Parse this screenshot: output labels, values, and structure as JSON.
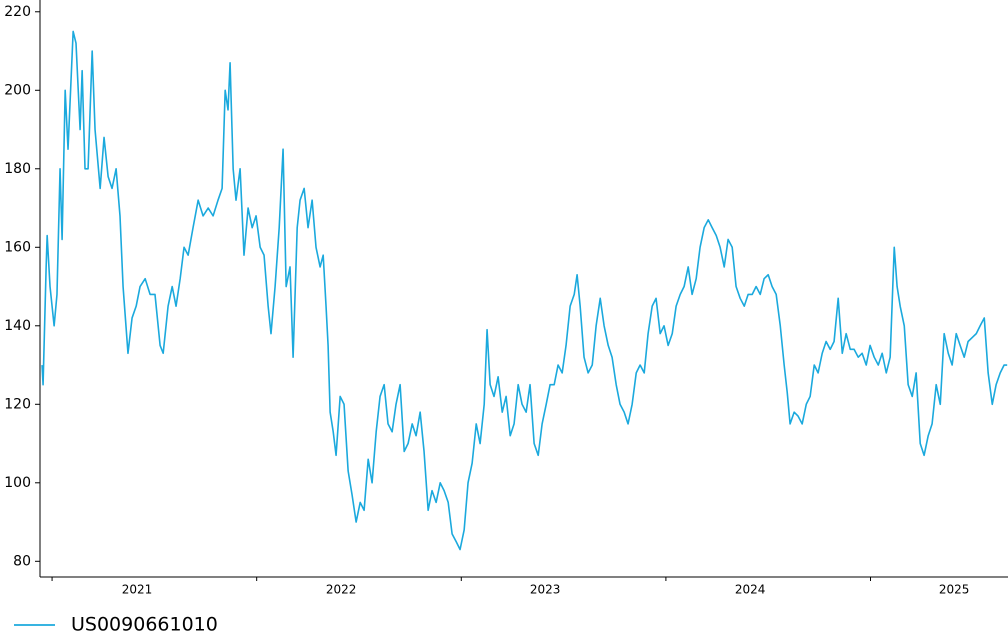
{
  "chart_data": {
    "type": "line",
    "x": [
      2020.951,
      2020.956,
      2020.971,
      2020.976,
      2020.99,
      2021.01,
      2021.024,
      2021.039,
      2021.049,
      2021.064,
      2021.078,
      2021.103,
      2021.117,
      2021.137,
      2021.147,
      2021.161,
      2021.176,
      2021.196,
      2021.21,
      2021.235,
      2021.254,
      2021.274,
      2021.293,
      2021.313,
      2021.332,
      2021.347,
      2021.371,
      2021.391,
      2021.411,
      2021.43,
      2021.455,
      2021.479,
      2021.503,
      2021.528,
      2021.543,
      2021.567,
      2021.587,
      2021.606,
      2021.626,
      2021.645,
      2021.665,
      2021.689,
      2021.714,
      2021.738,
      2021.763,
      2021.787,
      2021.811,
      2021.831,
      2021.846,
      2021.86,
      2021.87,
      2021.885,
      2021.899,
      2021.919,
      2021.938,
      2021.958,
      2021.978,
      2021.997,
      2022.017,
      2022.036,
      2022.056,
      2022.07,
      2022.09,
      2022.11,
      2022.129,
      2022.144,
      2022.163,
      2022.178,
      2022.198,
      2022.212,
      2022.232,
      2022.251,
      2022.271,
      2022.29,
      2022.31,
      2022.325,
      2022.339,
      2022.349,
      2022.359,
      2022.374,
      2022.388,
      2022.408,
      2022.427,
      2022.447,
      2022.466,
      2022.486,
      2022.506,
      2022.525,
      2022.545,
      2022.564,
      2022.584,
      2022.603,
      2022.623,
      2022.642,
      2022.662,
      2022.681,
      2022.701,
      2022.721,
      2022.74,
      2022.76,
      2022.779,
      2022.799,
      2022.818,
      2022.838,
      2022.857,
      2022.877,
      2022.897,
      2022.916,
      2022.936,
      2022.955,
      2022.975,
      2022.994,
      2023.014,
      2023.033,
      2023.053,
      2023.073,
      2023.092,
      2023.112,
      2023.126,
      2023.141,
      2023.16,
      2023.18,
      2023.2,
      2023.219,
      2023.239,
      2023.258,
      2023.278,
      2023.297,
      2023.317,
      2023.336,
      2023.356,
      2023.376,
      2023.395,
      2023.415,
      2023.434,
      2023.454,
      2023.473,
      2023.493,
      2023.512,
      2023.532,
      2023.552,
      2023.566,
      2023.581,
      2023.6,
      2023.62,
      2023.64,
      2023.659,
      2023.679,
      2023.698,
      2023.718,
      2023.737,
      2023.757,
      2023.776,
      2023.796,
      2023.815,
      2023.835,
      2023.855,
      2023.874,
      2023.894,
      2023.913,
      2023.933,
      2023.952,
      2023.972,
      2023.991,
      2024.011,
      2024.031,
      2024.05,
      2024.07,
      2024.089,
      2024.109,
      2024.128,
      2024.148,
      2024.167,
      2024.187,
      2024.207,
      2024.226,
      2024.246,
      2024.265,
      2024.285,
      2024.304,
      2024.324,
      2024.343,
      2024.363,
      2024.383,
      2024.402,
      2024.422,
      2024.441,
      2024.461,
      2024.48,
      2024.5,
      2024.519,
      2024.539,
      2024.559,
      2024.578,
      2024.593,
      2024.607,
      2024.627,
      2024.646,
      2024.666,
      2024.686,
      2024.705,
      2024.725,
      2024.744,
      2024.764,
      2024.783,
      2024.803,
      2024.822,
      2024.842,
      2024.862,
      2024.881,
      2024.901,
      2024.92,
      2024.94,
      2024.959,
      2024.979,
      2024.998,
      2025.018,
      2025.038,
      2025.057,
      2025.077,
      2025.096,
      2025.116,
      2025.13,
      2025.145,
      2025.165,
      2025.184,
      2025.204,
      2025.223,
      2025.243,
      2025.262,
      2025.282,
      2025.301,
      2025.321,
      2025.341,
      2025.36,
      2025.38,
      2025.399,
      2025.419,
      2025.438,
      2025.458,
      2025.477,
      2025.497,
      2025.517,
      2025.536,
      2025.556,
      2025.575,
      2025.595,
      2025.614,
      2025.634,
      2025.653,
      2025.668
    ],
    "series": [
      {
        "name": "US0090661010",
        "color": "#1ba9dd",
        "values": [
          130,
          125,
          155,
          163,
          150,
          140,
          148,
          180,
          162,
          200,
          185,
          215,
          212,
          190,
          205,
          180,
          180,
          210,
          190,
          175,
          188,
          178,
          175,
          180,
          168,
          150,
          133,
          142,
          145,
          150,
          152,
          148,
          148,
          135,
          133,
          145,
          150,
          145,
          152,
          160,
          158,
          165,
          172,
          168,
          170,
          168,
          172,
          175,
          200,
          195,
          207,
          180,
          172,
          180,
          158,
          170,
          165,
          168,
          160,
          158,
          145,
          138,
          150,
          165,
          185,
          150,
          155,
          132,
          165,
          172,
          175,
          165,
          172,
          160,
          155,
          158,
          145,
          135,
          118,
          113,
          107,
          122,
          120,
          103,
          97,
          90,
          95,
          93,
          106,
          100,
          113,
          122,
          125,
          115,
          113,
          120,
          125,
          108,
          110,
          115,
          112,
          118,
          108,
          93,
          98,
          95,
          100,
          98,
          95,
          87,
          85,
          83,
          88,
          100,
          105,
          115,
          110,
          120,
          139,
          125,
          122,
          127,
          118,
          122,
          112,
          115,
          125,
          120,
          118,
          125,
          110,
          107,
          115,
          120,
          125,
          125,
          130,
          128,
          135,
          145,
          148,
          153,
          145,
          132,
          128,
          130,
          140,
          147,
          140,
          135,
          132,
          125,
          120,
          118,
          115,
          120,
          128,
          130,
          128,
          138,
          145,
          147,
          138,
          140,
          135,
          138,
          145,
          148,
          150,
          155,
          148,
          152,
          160,
          165,
          167,
          165,
          163,
          160,
          155,
          162,
          160,
          150,
          147,
          145,
          148,
          148,
          150,
          148,
          152,
          153,
          150,
          148,
          140,
          130,
          123,
          115,
          118,
          117,
          115,
          120,
          122,
          130,
          128,
          133,
          136,
          134,
          136,
          147,
          133,
          138,
          134,
          134,
          132,
          133,
          130,
          135,
          132,
          130,
          133,
          128,
          132,
          160,
          150,
          145,
          140,
          125,
          122,
          128,
          110,
          107,
          112,
          115,
          125,
          120,
          138,
          133,
          130,
          138,
          135,
          132,
          136,
          137,
          138,
          140,
          142,
          128,
          120,
          125,
          128,
          130,
          130
        ]
      }
    ],
    "xlim": [
      2020.941,
      2025.672
    ],
    "xticks": [
      {
        "value": 2021.415,
        "label": "2021"
      },
      {
        "value": 2022.413,
        "label": "2022"
      },
      {
        "value": 2023.41,
        "label": "2023"
      },
      {
        "value": 2024.412,
        "label": "2024"
      },
      {
        "value": 2025.409,
        "label": "2025"
      }
    ],
    "xtick_marks": [
      2021,
      2022,
      2023,
      2024,
      2025
    ],
    "ylim": [
      76,
      223
    ],
    "yticks": [
      80,
      100,
      120,
      140,
      160,
      180,
      200,
      220
    ],
    "grid": false,
    "legend": "lower left"
  }
}
